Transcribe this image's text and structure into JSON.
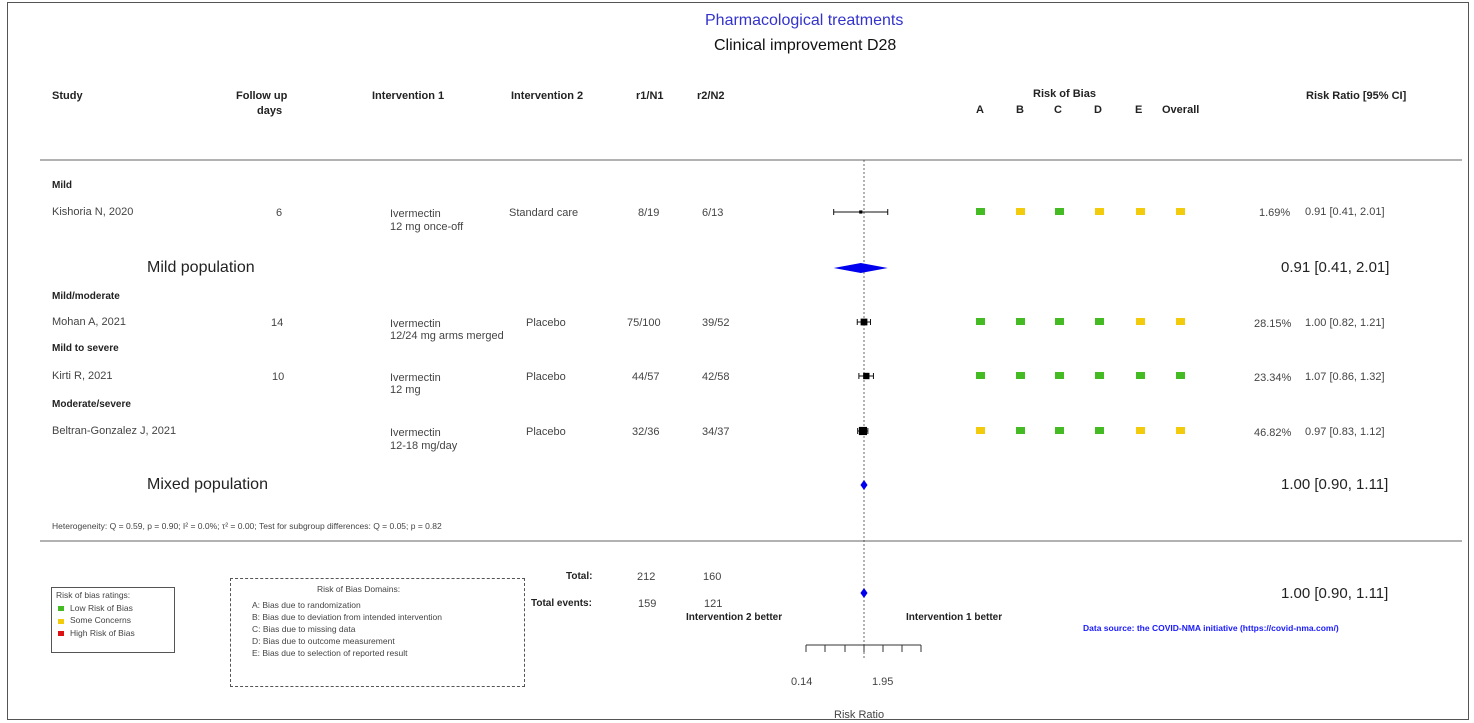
{
  "title": "Pharmacological treatments",
  "subtitle": "Clinical improvement D28",
  "headers": {
    "study": "Study",
    "followup_line1": "Follow up",
    "followup_line2": "days",
    "intervention1": "Intervention 1",
    "intervention2": "Intervention 2",
    "r1n1": "r1/N1",
    "r2n2": "r2/N2",
    "rob_title": "Risk of Bias",
    "rob_domains": [
      "A",
      "B",
      "C",
      "D",
      "E",
      "Overall"
    ],
    "risk_ratio": "Risk Ratio [95% CI]"
  },
  "groups": {
    "mild": "Mild",
    "mild_moderate": "Mild/moderate",
    "mild_severe": "Mild to severe",
    "moderate_severe": "Moderate/severe"
  },
  "studies": [
    {
      "study": "Kishoria N, 2020",
      "followup": "6",
      "int1_line1": "Ivermectin",
      "int1_line2": "12 mg once-off",
      "int2": "Standard care",
      "r1n1": "8/19",
      "r2n2": "6/13",
      "weight": "1.69%",
      "ci_text": "0.91 [0.41, 2.01]",
      "rr": 0.91,
      "lo": 0.41,
      "hi": 2.01,
      "w": 1.69,
      "rob": [
        "low",
        "some",
        "low",
        "some",
        "some",
        "some"
      ]
    },
    {
      "study": "Mohan A, 2021",
      "followup": "14",
      "int1_line1": "Ivermectin",
      "int1_line2": "12/24 mg arms merged",
      "int2": "Placebo",
      "r1n1": "75/100",
      "r2n2": "39/52",
      "weight": "28.15%",
      "ci_text": "1.00 [0.82, 1.21]",
      "rr": 1.0,
      "lo": 0.82,
      "hi": 1.21,
      "w": 28.15,
      "rob": [
        "low",
        "low",
        "low",
        "low",
        "some",
        "some"
      ]
    },
    {
      "study": "Kirti R, 2021",
      "followup": "10",
      "int1_line1": "Ivermectin",
      "int1_line2": "12 mg",
      "int2": "Placebo",
      "r1n1": "44/57",
      "r2n2": "42/58",
      "weight": "23.34%",
      "ci_text": "1.07 [0.86, 1.32]",
      "rr": 1.07,
      "lo": 0.86,
      "hi": 1.32,
      "w": 23.34,
      "rob": [
        "low",
        "low",
        "low",
        "low",
        "low",
        "low"
      ]
    },
    {
      "study": "Beltran-Gonzalez J, 2021",
      "followup": "",
      "int1_line1": "Ivermectin",
      "int1_line2": "12-18 mg/day",
      "int2": "Placebo",
      "r1n1": "32/36",
      "r2n2": "34/37",
      "weight": "46.82%",
      "ci_text": "0.97 [0.83, 1.12]",
      "rr": 0.97,
      "lo": 0.83,
      "hi": 1.12,
      "w": 46.82,
      "rob": [
        "some",
        "low",
        "low",
        "low",
        "some",
        "some"
      ]
    }
  ],
  "subgroups": [
    {
      "label": "Mild population",
      "ci_text": "0.91 [0.41, 2.01]",
      "rr": 0.91,
      "lo": 0.41,
      "hi": 2.01
    },
    {
      "label": "Mixed population",
      "ci_text": "1.00 [0.90, 1.11]",
      "rr": 1.0,
      "lo": 0.9,
      "hi": 1.11
    }
  ],
  "heterogeneity": "Heterogeneity: Q = 0.59, p = 0.90; I² = 0.0%; τ² = 0.00; Test for subgroup differences: Q = 0.05; p = 0.82",
  "totals": {
    "total_label": "Total:",
    "total_r1": "212",
    "total_r2": "160",
    "events_label": "Total events:",
    "events_r1": "159",
    "events_r2": "121",
    "overall_ci_text": "1.00 [0.90, 1.11]",
    "rr": 1.0,
    "lo": 0.9,
    "hi": 1.11
  },
  "axis": {
    "left_label": "Intervention 2 better",
    "right_label": "Intervention 1 better",
    "tick_labels": [
      "0.14",
      "1.95"
    ],
    "xlabel": "Risk Ratio"
  },
  "legend": {
    "title": "Risk of bias ratings:",
    "items": [
      {
        "label": "Low Risk of Bias",
        "color": "#44bb22"
      },
      {
        "label": "Some Concerns",
        "color": "#f2cc0c"
      },
      {
        "label": "High Risk of Bias",
        "color": "#dd1111"
      }
    ]
  },
  "domains_box": {
    "title": "Risk of Bias Domains:",
    "items": [
      "A: Bias due to randomization",
      "B: Bias due to deviation from intended intervention",
      "C: Bias due to missing data",
      "D: Bias due to outcome measurement",
      "E: Bias due to selection of reported result"
    ]
  },
  "data_source": "Data source: the COVID-NMA initiative (https://covid-nma.com/)",
  "colors": {
    "low": "#44bb22",
    "some": "#f2cc0c",
    "high": "#dd1111",
    "diamond": "#0000ee"
  },
  "chart_data": {
    "type": "forest",
    "xlabel": "Risk Ratio",
    "x_scale": "log",
    "reference_line": 1,
    "studies": [
      {
        "name": "Kishoria N, 2020",
        "rr": 0.91,
        "lo": 0.41,
        "hi": 2.01,
        "weight": 1.69
      },
      {
        "name": "Mohan A, 2021",
        "rr": 1.0,
        "lo": 0.82,
        "hi": 1.21,
        "weight": 28.15
      },
      {
        "name": "Kirti R, 2021",
        "rr": 1.07,
        "lo": 0.86,
        "hi": 1.32,
        "weight": 23.34
      },
      {
        "name": "Beltran-Gonzalez J, 2021",
        "rr": 0.97,
        "lo": 0.83,
        "hi": 1.12,
        "weight": 46.82
      }
    ],
    "subgroups": [
      {
        "name": "Mild population",
        "rr": 0.91,
        "lo": 0.41,
        "hi": 2.01
      },
      {
        "name": "Mixed population",
        "rr": 1.0,
        "lo": 0.9,
        "hi": 1.11
      }
    ],
    "overall": {
      "rr": 1.0,
      "lo": 0.9,
      "hi": 1.11
    }
  }
}
